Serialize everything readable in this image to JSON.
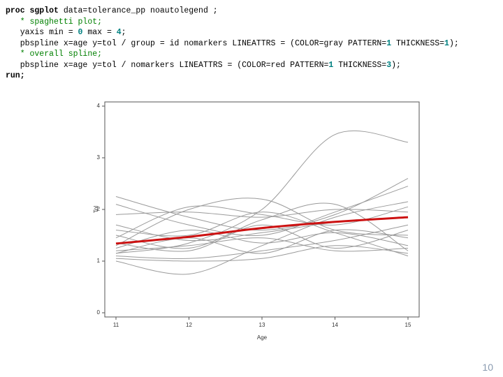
{
  "code": {
    "lines": [
      [
        {
          "t": "proc sgplot",
          "s": "kw"
        },
        {
          "t": " data=tolerance_pp noautolegend ;",
          "s": "plain"
        }
      ],
      [
        {
          "t": "   * spaghetti plot;",
          "s": "cm"
        }
      ],
      [
        {
          "t": "   yaxis min = ",
          "s": "plain"
        },
        {
          "t": "0",
          "s": "num"
        },
        {
          "t": " max = ",
          "s": "plain"
        },
        {
          "t": "4",
          "s": "num"
        },
        {
          "t": ";",
          "s": "plain"
        }
      ],
      [
        {
          "t": "   pbspline x=age y=tol / group = id nomarkers LINEATTRS = (COLOR=gray PATTERN=",
          "s": "plain"
        },
        {
          "t": "1",
          "s": "num"
        },
        {
          "t": " THICKNESS=",
          "s": "plain"
        },
        {
          "t": "1",
          "s": "num"
        },
        {
          "t": ");",
          "s": "plain"
        }
      ],
      [
        {
          "t": "   * overall spline;",
          "s": "cm"
        }
      ],
      [
        {
          "t": "   pbspline x=age y=tol / nomarkers LINEATTRS = (COLOR=red PATTERN=",
          "s": "plain"
        },
        {
          "t": "1",
          "s": "num"
        },
        {
          "t": " THICKNESS=",
          "s": "plain"
        },
        {
          "t": "3",
          "s": "num"
        },
        {
          "t": ");",
          "s": "plain"
        }
      ],
      [
        {
          "t": "run;",
          "s": "kw"
        }
      ]
    ]
  },
  "chart_data": {
    "type": "line",
    "x_label": "Age",
    "y_label": "Tol",
    "x": [
      11,
      12,
      13,
      14,
      15
    ],
    "xlim": [
      11,
      15
    ],
    "xticks": [
      11,
      12,
      13,
      14,
      15
    ],
    "ylim": [
      0,
      4
    ],
    "yticks": [
      0,
      1,
      2,
      3,
      4
    ],
    "series": [
      {
        "color": "#9a9a9a",
        "width": 1,
        "values": [
          1.15,
          1.35,
          2.0,
          3.45,
          3.3
        ]
      },
      {
        "color": "#9a9a9a",
        "width": 1,
        "values": [
          2.25,
          1.85,
          1.6,
          1.9,
          2.6
        ]
      },
      {
        "color": "#9a9a9a",
        "width": 1,
        "values": [
          2.1,
          1.7,
          1.5,
          1.95,
          2.45
        ]
      },
      {
        "color": "#9a9a9a",
        "width": 1,
        "values": [
          1.0,
          0.75,
          1.3,
          1.85,
          2.15
        ]
      },
      {
        "color": "#9a9a9a",
        "width": 1,
        "values": [
          1.3,
          2.0,
          2.2,
          1.6,
          1.5
        ]
      },
      {
        "color": "#9a9a9a",
        "width": 1,
        "values": [
          1.45,
          2.05,
          1.9,
          1.7,
          2.05
        ]
      },
      {
        "color": "#9a9a9a",
        "width": 1,
        "values": [
          1.9,
          1.95,
          1.85,
          2.0,
          1.95
        ]
      },
      {
        "color": "#9a9a9a",
        "width": 1,
        "values": [
          1.6,
          1.5,
          1.95,
          1.55,
          1.1
        ]
      },
      {
        "color": "#9a9a9a",
        "width": 1,
        "values": [
          1.1,
          1.05,
          1.2,
          1.4,
          1.7
        ]
      },
      {
        "color": "#9a9a9a",
        "width": 1,
        "values": [
          1.2,
          1.3,
          1.45,
          1.2,
          1.25
        ]
      },
      {
        "color": "#9a9a9a",
        "width": 1,
        "values": [
          1.05,
          1.0,
          1.05,
          1.3,
          1.15
        ]
      },
      {
        "color": "#9a9a9a",
        "width": 1,
        "values": [
          1.25,
          1.6,
          1.35,
          1.55,
          1.3
        ]
      },
      {
        "color": "#9a9a9a",
        "width": 1,
        "values": [
          1.7,
          1.4,
          1.55,
          1.75,
          1.85
        ]
      },
      {
        "color": "#9a9a9a",
        "width": 1,
        "values": [
          1.35,
          1.2,
          1.7,
          1.25,
          1.6
        ]
      },
      {
        "color": "#9a9a9a",
        "width": 1,
        "values": [
          1.15,
          1.45,
          1.15,
          1.6,
          1.45
        ]
      },
      {
        "color": "#9a9a9a",
        "width": 1,
        "values": [
          1.5,
          1.25,
          1.8,
          2.1,
          1.2
        ]
      },
      {
        "color": "#cc1111",
        "width": 3,
        "values": [
          1.34,
          1.47,
          1.64,
          1.76,
          1.85
        ]
      }
    ]
  },
  "page_number": "10"
}
